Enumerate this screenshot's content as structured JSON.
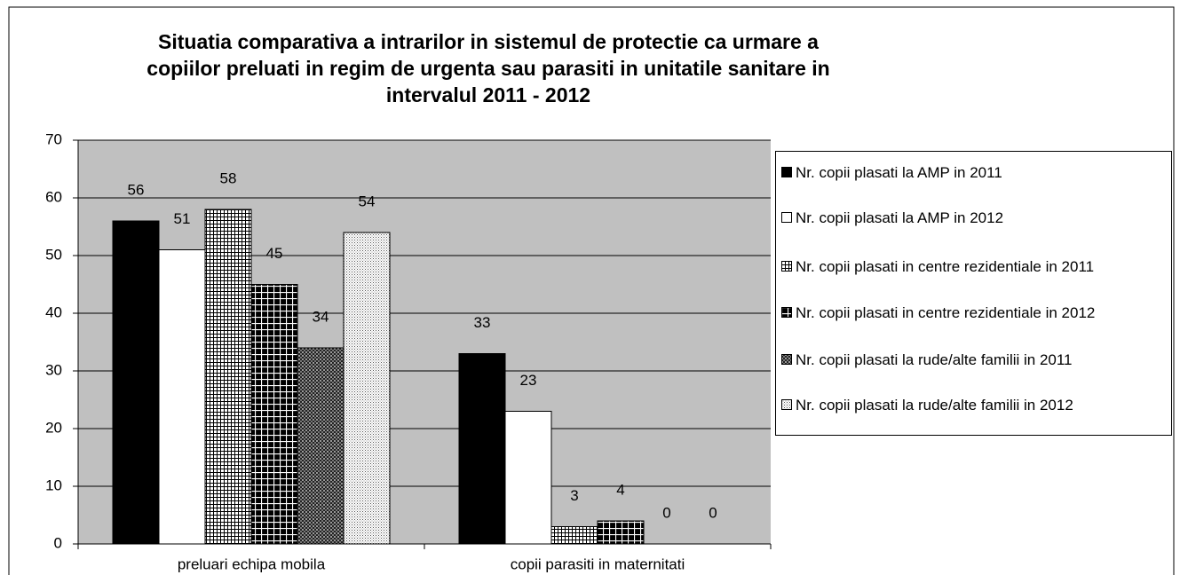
{
  "chart_data": {
    "type": "bar",
    "title": "Situatia comparativa a intrarilor in sistemul de protectie ca urmare a copiilor preluati in regim de urgenta sau parasiti in unitatile sanitare in intervalul 2011 - 2012",
    "categories": [
      "preluari echipa mobila",
      "copii parasiti in maternitati"
    ],
    "series": [
      {
        "name": "Nr. copii  plasati la AMP in  2011",
        "color": "#000000",
        "pattern": "solid",
        "values": [
          56,
          33
        ]
      },
      {
        "name": "Nr. copii  plasati la AMP in  2012",
        "color": "#ffffff",
        "pattern": "solid",
        "values": [
          51,
          23
        ]
      },
      {
        "name": "Nr. copii  plasati in centre rezidentiale in  2011",
        "color": "#ffffff",
        "pattern": "grid",
        "values": [
          58,
          3
        ]
      },
      {
        "name": "Nr. copii  plasati in centre rezidentiale in  2012",
        "color": "#000000",
        "pattern": "inverse-grid",
        "values": [
          45,
          4
        ]
      },
      {
        "name": "Nr. copii  plasati la rude/alte familii in  2011",
        "color": "#444444",
        "pattern": "check",
        "values": [
          34,
          0
        ]
      },
      {
        "name": "Nr. copii  plasati la rude/alte familii in  2012",
        "color": "#ffffff",
        "pattern": "dots",
        "values": [
          54,
          0
        ]
      }
    ],
    "ylim": [
      0,
      70
    ],
    "yticks": [
      0,
      10,
      20,
      30,
      40,
      50,
      60,
      70
    ],
    "grid": true,
    "plot_background": "#c0c0c0",
    "legend": "right"
  }
}
